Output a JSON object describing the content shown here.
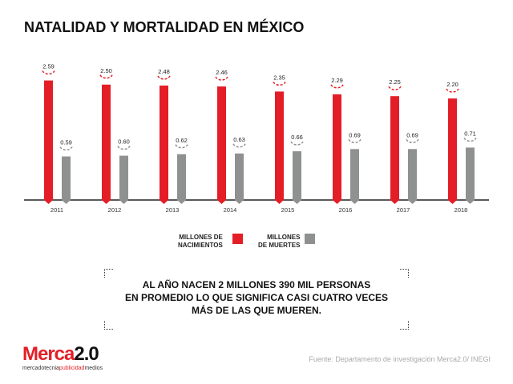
{
  "title": "NATALIDAD Y MORTALIDAD EN MÉXICO",
  "chart_data": {
    "type": "bar",
    "categories": [
      "2011",
      "2012",
      "2013",
      "2014",
      "2015",
      "2016",
      "2017",
      "2018"
    ],
    "series": [
      {
        "name": "MILLONES DE NACIMIENTOS",
        "color": "#e41e26",
        "values": [
          2.59,
          2.5,
          2.48,
          2.46,
          2.35,
          2.29,
          2.25,
          2.2
        ],
        "labels": [
          "2.59",
          "2.50",
          "2.48",
          "2.46",
          "2.35",
          "2.29",
          "2.25",
          "2.20"
        ]
      },
      {
        "name": "MILLONES DE MUERTES",
        "color": "#8f9090",
        "values": [
          0.59,
          0.6,
          0.62,
          0.63,
          0.66,
          0.69,
          0.69,
          0.71
        ],
        "labels": [
          "0.59",
          "0.60",
          "0.62",
          "0.63",
          "0.66",
          "0.69",
          "0.69",
          "0.71"
        ]
      }
    ],
    "ylim": [
      0,
      2.6
    ],
    "grid": false,
    "legend": "bottom"
  },
  "legend": {
    "births_line1": "MILLONES DE",
    "births_line2": "NACIMIENTOS",
    "deaths_line1": "MILLONES",
    "deaths_line2": "DE MUERTES"
  },
  "callout": {
    "line1": "AL AÑO NACEN 2 MILLONES 390 MIL PERSONAS",
    "line2": "EN PROMEDIO LO QUE SIGNIFICA CASI CUATRO VECES",
    "line3": "MÁS DE LAS QUE MUEREN."
  },
  "logo": {
    "brand_a": "Merca",
    "brand_b": "2.0",
    "tag_a": "mercadotecnia",
    "tag_b": "publicidad",
    "tag_c": "medios"
  },
  "source": "Fuente: Departamento de investigación Merca2.0/ INEGI"
}
